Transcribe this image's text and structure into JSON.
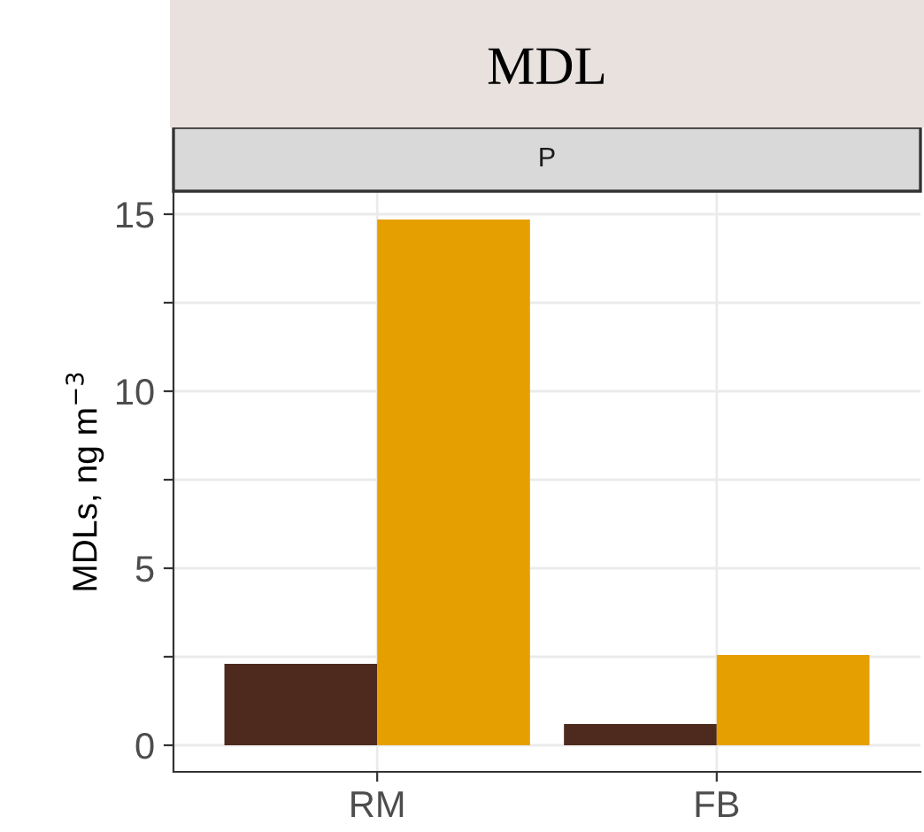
{
  "chart_data": {
    "type": "bar",
    "title": "MDL",
    "subtitle": "P",
    "ylabel": "MDLs, ng m$^{−3}$",
    "categories": [
      "RM",
      "FB"
    ],
    "series": [
      {
        "color": "#4e2a1e",
        "values": [
          2.3,
          0.6
        ]
      },
      {
        "color": "#e69f00",
        "values": [
          14.85,
          2.55
        ]
      }
    ],
    "ylim": [
      -0.75,
      15.65
    ],
    "yticks": [
      0,
      {
        "value": 2.5,
        "label": null
      },
      5,
      {
        "value": 7.5,
        "label": null
      },
      10,
      {
        "value": 12.5,
        "label": null
      },
      15
    ],
    "grid": true,
    "legend": false
  }
}
